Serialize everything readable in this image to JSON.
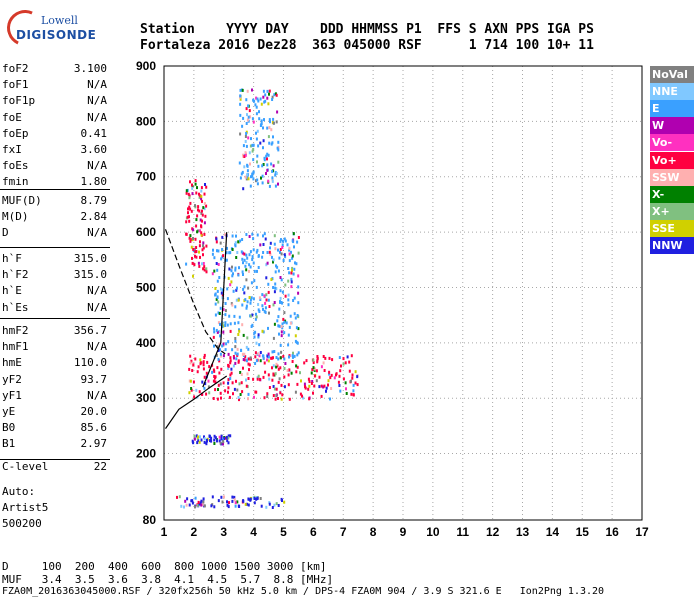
{
  "logo": {
    "line1": "Lowell",
    "line2": "DIGISONDE"
  },
  "header": {
    "row1": "Station    YYYY DAY    DDD HHMMSS P1  FFS S AXN PPS IGA PS",
    "row2": "Fortaleza 2016 Dez28  363 045000 RSF      1 714 100 10+ 11"
  },
  "params_group1": [
    {
      "k": "foF2",
      "v": "3.100"
    },
    {
      "k": "foF1",
      "v": "N/A"
    },
    {
      "k": "foF1p",
      "v": "N/A"
    },
    {
      "k": "foE",
      "v": "N/A"
    },
    {
      "k": "foEp",
      "v": "0.41"
    },
    {
      "k": "fxI",
      "v": "3.60"
    },
    {
      "k": "foEs",
      "v": "N/A"
    },
    {
      "k": "fmin",
      "v": "1.80"
    }
  ],
  "params_group2": [
    {
      "k": "MUF(D)",
      "v": "8.79"
    },
    {
      "k": "M(D)",
      "v": "2.84"
    },
    {
      "k": "D",
      "v": "N/A"
    }
  ],
  "params_group3": [
    {
      "k": "h`F",
      "v": "315.0"
    },
    {
      "k": "h`F2",
      "v": "315.0"
    },
    {
      "k": "h`E",
      "v": "N/A"
    },
    {
      "k": "h`Es",
      "v": "N/A"
    }
  ],
  "params_group4": [
    {
      "k": "hmF2",
      "v": "356.7"
    },
    {
      "k": "hmF1",
      "v": "N/A"
    },
    {
      "k": "hmE",
      "v": "110.0"
    },
    {
      "k": "yF2",
      "v": "93.7"
    },
    {
      "k": "yF1",
      "v": "N/A"
    },
    {
      "k": "yE",
      "v": "20.0"
    },
    {
      "k": "B0",
      "v": "85.6"
    },
    {
      "k": "B1",
      "v": "2.97"
    }
  ],
  "clevel": {
    "k": "C-level",
    "v": "22"
  },
  "auto": {
    "line1": "Auto:",
    "line2": "Artist5",
    "line3": "500200"
  },
  "legend": [
    {
      "label": "NoVal",
      "color": "#808080"
    },
    {
      "label": "NNE",
      "color": "#80c8ff"
    },
    {
      "label": "E",
      "color": "#3aa0ff"
    },
    {
      "label": "W",
      "color": "#b000b0"
    },
    {
      "label": "Vo-",
      "color": "#ff30c0"
    },
    {
      "label": "Vo+",
      "color": "#ff0040"
    },
    {
      "label": "SSW",
      "color": "#ffb0b0"
    },
    {
      "label": "X-",
      "color": "#008000"
    },
    {
      "label": "X+",
      "color": "#80c080"
    },
    {
      "label": "SSE",
      "color": "#d0d000"
    },
    {
      "label": "NNW",
      "color": "#2020e0"
    }
  ],
  "bottom": {
    "d_row": "D     100  200  400  600  800 1000 1500 3000 [km]",
    "muf_row": "MUF   3.4  3.5  3.6  3.8  4.1  4.5  5.7  8.8 [MHz]",
    "footer": "FZA0M_2016363045000.RSF / 320fx256h 50 kHz 5.0 km / DPS-4 FZA0M 904 / 3.9 S 321.6 E   Ion2Png 1.3.20"
  },
  "chart_data": {
    "type": "scatter",
    "title": "",
    "xlabel": "",
    "ylabel": "",
    "xlim": [
      1,
      17
    ],
    "ylim": [
      80,
      900
    ],
    "xticks": [
      1,
      2,
      3,
      4,
      5,
      6,
      7,
      8,
      9,
      10,
      11,
      12,
      13,
      14,
      15,
      16,
      17
    ],
    "yticks": [
      80,
      200,
      300,
      400,
      500,
      600,
      700,
      800,
      900
    ],
    "grid": true,
    "legend_placement": "right",
    "traces": [
      {
        "name": "virtual height trace (E)",
        "x": [
          1.05,
          1.5,
          2.0,
          2.5,
          3.1
        ],
        "y": [
          245,
          280,
          298,
          318,
          340
        ]
      },
      {
        "name": "profile",
        "x": [
          2.3,
          2.9,
          3.1
        ],
        "y": [
          320,
          400,
          600
        ]
      },
      {
        "name": "ordinary F trace",
        "x": [
          1.05,
          1.5,
          2.0,
          2.4,
          2.8,
          3.05
        ],
        "y": [
          605,
          540,
          470,
          420,
          390,
          380
        ]
      }
    ],
    "clusters": [
      {
        "x": [
          1.8,
          7.5
        ],
        "y": [
          300,
          380
        ],
        "dominant": "Vo+"
      },
      {
        "x": [
          2.6,
          5.5
        ],
        "y": [
          370,
          600
        ],
        "dominant": "E"
      },
      {
        "x": [
          1.7,
          2.4
        ],
        "y": [
          520,
          700
        ],
        "dominant": "Vo+"
      },
      {
        "x": [
          1.9,
          3.2
        ],
        "y": [
          220,
          235
        ],
        "dominant": "NNW"
      },
      {
        "x": [
          1.4,
          5.0
        ],
        "y": [
          105,
          125
        ],
        "dominant": "NNW"
      },
      {
        "x": [
          3.5,
          4.8
        ],
        "y": [
          680,
          860
        ],
        "dominant": "E"
      }
    ]
  }
}
